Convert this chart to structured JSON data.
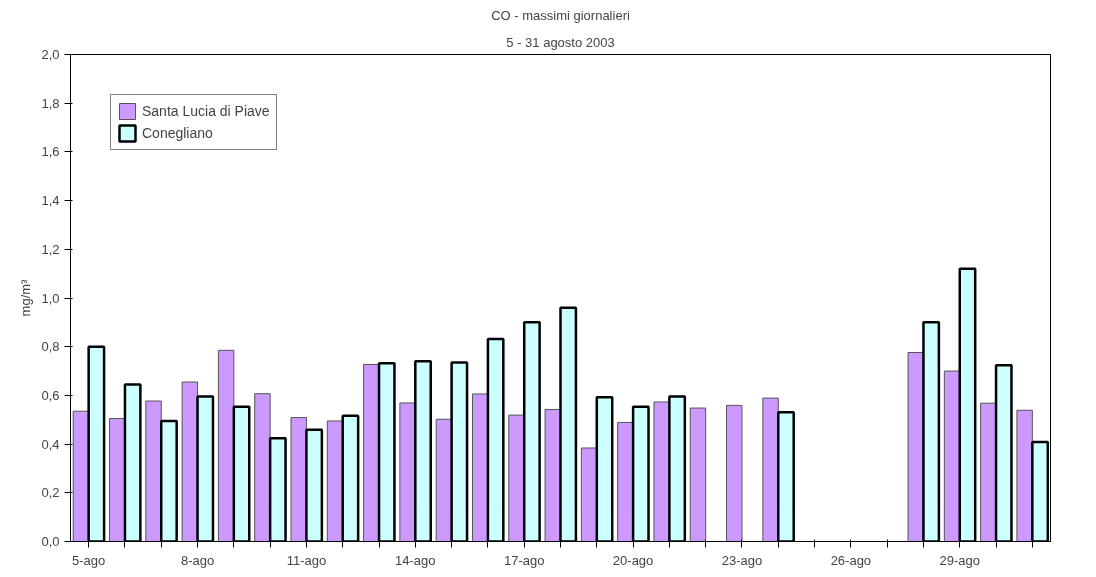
{
  "chart_data": {
    "type": "bar",
    "title": "CO - massimi giornalieri",
    "subtitle": "5 - 31 agosto 2003",
    "ylabel": "mg/m³",
    "categories": [
      "5-ago",
      null,
      null,
      "8-ago",
      null,
      null,
      "11-ago",
      null,
      null,
      "14-ago",
      null,
      null,
      "17-ago",
      null,
      null,
      "20-ago",
      null,
      null,
      "23-ago",
      null,
      null,
      "26-ago",
      null,
      null,
      "29-ago",
      null,
      null
    ],
    "series": [
      {
        "name": "Santa Lucia di Piave",
        "color": "#cc99ff",
        "values": [
          0.535,
          0.505,
          0.577,
          0.655,
          0.785,
          0.607,
          0.509,
          0.495,
          0.727,
          0.569,
          0.502,
          0.606,
          0.519,
          0.542,
          0.384,
          0.489,
          0.573,
          0.548,
          0.559,
          0.589,
          null,
          null,
          null,
          0.776,
          0.7,
          0.568,
          0.539
        ]
      },
      {
        "name": "Conegliano",
        "color": "#ccffff",
        "values": [
          0.8,
          0.645,
          0.495,
          0.595,
          0.553,
          0.424,
          0.459,
          0.516,
          0.732,
          0.74,
          0.735,
          0.832,
          0.9,
          0.96,
          0.592,
          0.553,
          0.595,
          null,
          null,
          0.531,
          null,
          null,
          null,
          0.9,
          1.12,
          0.724,
          0.409
        ]
      }
    ],
    "ylim": [
      0,
      2.0
    ],
    "yticks": [
      {
        "value": 0,
        "label": "0,0"
      },
      {
        "value": 0.2,
        "label": "0,2"
      },
      {
        "value": 0.4,
        "label": "0,4"
      },
      {
        "value": 0.6,
        "label": "0,6"
      },
      {
        "value": 0.8,
        "label": "0,8"
      },
      {
        "value": 1.0,
        "label": "1,0"
      },
      {
        "value": 1.2,
        "label": "1,2"
      },
      {
        "value": 1.4,
        "label": "1,4"
      },
      {
        "value": 1.6,
        "label": "1,6"
      },
      {
        "value": 1.8,
        "label": "1,8"
      },
      {
        "value": 2.0,
        "label": "2,0"
      }
    ],
    "legend": "top left"
  }
}
